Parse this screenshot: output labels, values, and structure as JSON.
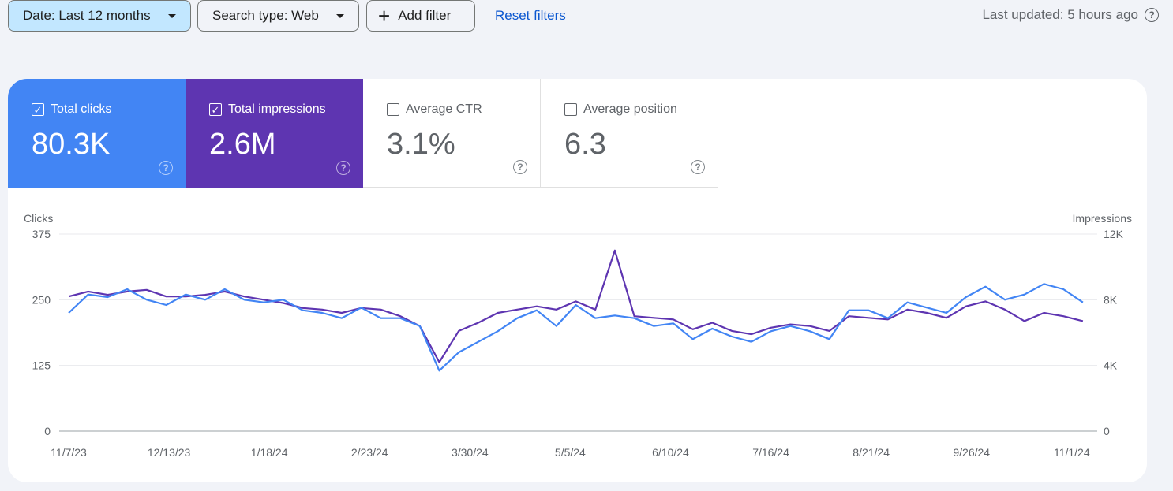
{
  "filters": {
    "date": "Date: Last 12 months",
    "search_type": "Search type: Web",
    "add_filter": "Add filter",
    "reset": "Reset filters",
    "last_updated": "Last updated: 5 hours ago"
  },
  "metrics": [
    {
      "label": "Total clicks",
      "value": "80.3K",
      "checked": true,
      "color": "#4285f4"
    },
    {
      "label": "Total impressions",
      "value": "2.6M",
      "checked": true,
      "color": "#5e35b1"
    },
    {
      "label": "Average CTR",
      "value": "3.1%",
      "checked": false
    },
    {
      "label": "Average position",
      "value": "6.3",
      "checked": false
    }
  ],
  "chart_data": {
    "type": "line",
    "left_axis": {
      "label": "Clicks",
      "ticks": [
        "0",
        "125",
        "250",
        "375"
      ],
      "range": [
        0,
        375
      ]
    },
    "right_axis": {
      "label": "Impressions",
      "ticks": [
        "0",
        "4K",
        "8K",
        "12K"
      ],
      "range": [
        0,
        12000
      ]
    },
    "x_ticks": [
      "11/7/23",
      "12/13/23",
      "1/18/24",
      "2/23/24",
      "3/30/24",
      "5/5/24",
      "6/10/24",
      "7/16/24",
      "8/21/24",
      "9/26/24",
      "11/1/24"
    ],
    "grid": true,
    "x": [
      "11/7/23",
      "11/14/23",
      "11/21/23",
      "11/28/23",
      "12/5/23",
      "12/12/23",
      "12/19/23",
      "12/26/23",
      "1/2/24",
      "1/9/24",
      "1/16/24",
      "1/23/24",
      "1/30/24",
      "2/6/24",
      "2/13/24",
      "2/20/24",
      "2/27/24",
      "3/5/24",
      "3/12/24",
      "3/19/24",
      "3/26/24",
      "4/2/24",
      "4/9/24",
      "4/16/24",
      "4/23/24",
      "4/30/24",
      "5/7/24",
      "5/14/24",
      "5/21/24",
      "5/28/24",
      "6/4/24",
      "6/11/24",
      "6/18/24",
      "6/25/24",
      "7/2/24",
      "7/9/24",
      "7/16/24",
      "7/23/24",
      "7/30/24",
      "8/6/24",
      "8/13/24",
      "8/20/24",
      "8/27/24",
      "9/3/24",
      "9/10/24",
      "9/17/24",
      "9/24/24",
      "10/1/24",
      "10/8/24",
      "10/15/24",
      "10/22/24",
      "10/29/24",
      "11/5/24"
    ],
    "series": [
      {
        "name": "Clicks",
        "axis": "left",
        "color": "#4285f4",
        "values": [
          225,
          260,
          255,
          270,
          250,
          240,
          260,
          250,
          270,
          250,
          245,
          250,
          230,
          225,
          215,
          235,
          215,
          215,
          200,
          115,
          150,
          170,
          190,
          215,
          230,
          200,
          240,
          215,
          220,
          215,
          200,
          205,
          175,
          195,
          180,
          170,
          190,
          200,
          190,
          175,
          230,
          230,
          215,
          245,
          235,
          225,
          255,
          275,
          250,
          260,
          280,
          270,
          245
        ]
      },
      {
        "name": "Impressions",
        "axis": "right",
        "color": "#5e35b1",
        "values": [
          8200,
          8500,
          8300,
          8500,
          8600,
          8200,
          8200,
          8300,
          8500,
          8200,
          8000,
          7800,
          7500,
          7400,
          7200,
          7500,
          7400,
          7000,
          6400,
          4200,
          6100,
          6600,
          7200,
          7400,
          7600,
          7400,
          7900,
          7400,
          11000,
          7000,
          6900,
          6800,
          6200,
          6600,
          6100,
          5900,
          6300,
          6500,
          6400,
          6100,
          7000,
          6900,
          6800,
          7400,
          7200,
          6900,
          7600,
          7900,
          7400,
          6700,
          7200,
          7000,
          6700
        ]
      }
    ]
  }
}
